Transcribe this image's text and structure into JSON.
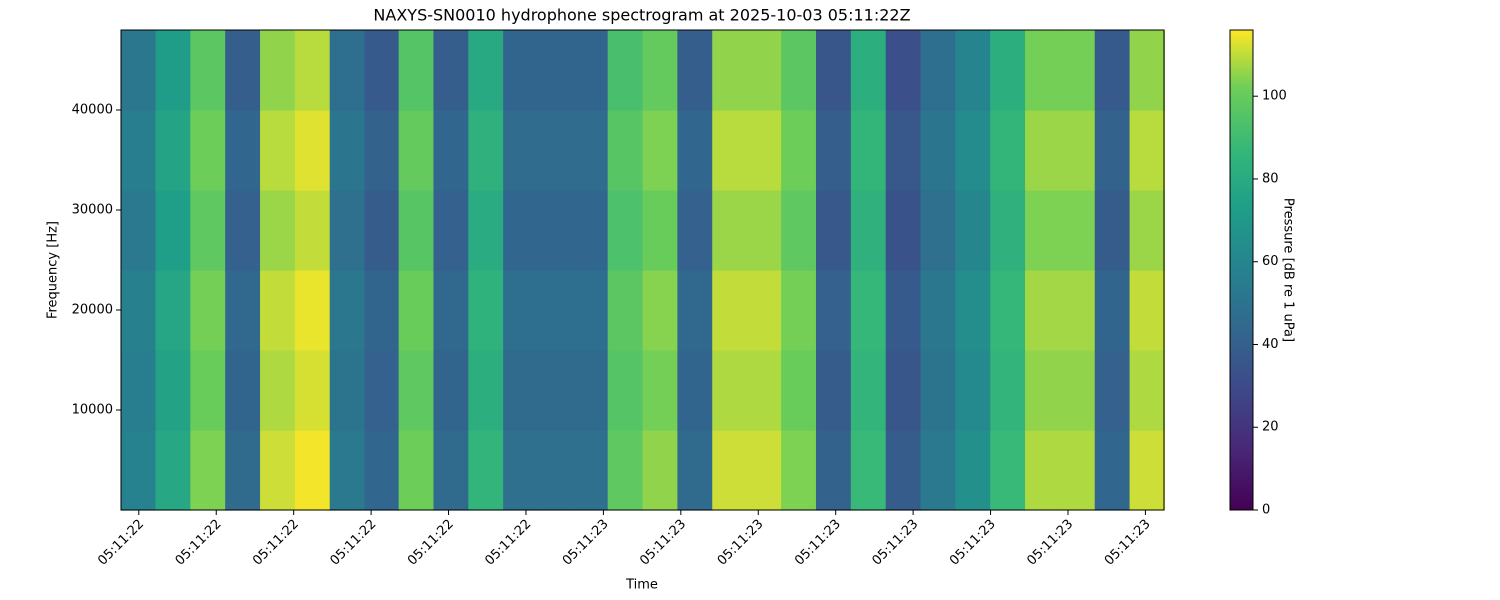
{
  "chart_data": {
    "type": "heatmap",
    "title": "NAXYS-SN0010 hydrophone spectrogram at 2025-10-03 05:11:22Z",
    "xlabel": "Time",
    "ylabel": "Frequency [Hz]",
    "colorbar_label": "Pressure [dB re 1 uPa]",
    "colormap": "viridis",
    "xlim": [
      22.377,
      23.724
    ],
    "ylim": [
      0,
      48000
    ],
    "clim": [
      0,
      116
    ],
    "xticks": [
      {
        "value": 22.4,
        "label": "05:11:22"
      },
      {
        "value": 22.5,
        "label": "05:11:22"
      },
      {
        "value": 22.6,
        "label": "05:11:22"
      },
      {
        "value": 22.7,
        "label": "05:11:22"
      },
      {
        "value": 22.8,
        "label": "05:11:22"
      },
      {
        "value": 22.9,
        "label": "05:11:22"
      },
      {
        "value": 23.0,
        "label": "05:11:23"
      },
      {
        "value": 23.1,
        "label": "05:11:23"
      },
      {
        "value": 23.2,
        "label": "05:11:23"
      },
      {
        "value": 23.3,
        "label": "05:11:23"
      },
      {
        "value": 23.4,
        "label": "05:11:23"
      },
      {
        "value": 23.5,
        "label": "05:11:23"
      },
      {
        "value": 23.6,
        "label": "05:11:23"
      },
      {
        "value": 23.7,
        "label": "05:11:23"
      }
    ],
    "yticks": [
      10000,
      20000,
      30000,
      40000
    ],
    "cticks": [
      0,
      20,
      40,
      60,
      80,
      100
    ],
    "x": [
      22.399,
      22.444,
      22.489,
      22.534,
      22.579,
      22.624,
      22.669,
      22.714,
      22.758,
      22.803,
      22.848,
      22.893,
      22.938,
      22.983,
      23.028,
      23.073,
      23.118,
      23.163,
      23.208,
      23.252,
      23.297,
      23.342,
      23.387,
      23.432,
      23.477,
      23.522,
      23.567,
      23.612,
      23.657,
      23.702
    ],
    "y": [
      4000,
      12000,
      20000,
      28000,
      36000,
      44000
    ],
    "z": [
      [
        58,
        78,
        103,
        45,
        111,
        115,
        53,
        43,
        101,
        45,
        85,
        48,
        48,
        48,
        98,
        105,
        45,
        111,
        111,
        103,
        41,
        88,
        38,
        53,
        65,
        88,
        108,
        108,
        43,
        111
      ],
      [
        55,
        75,
        100,
        42,
        108,
        112,
        50,
        40,
        98,
        42,
        82,
        45,
        45,
        45,
        95,
        102,
        42,
        108,
        108,
        100,
        38,
        85,
        35,
        50,
        62,
        85,
        105,
        105,
        40,
        108
      ],
      [
        57,
        77,
        102,
        44,
        110,
        114,
        52,
        42,
        100,
        44,
        84,
        47,
        47,
        47,
        97,
        104,
        44,
        110,
        110,
        102,
        40,
        87,
        37,
        52,
        64,
        87,
        107,
        107,
        42,
        110
      ],
      [
        53,
        73,
        98,
        40,
        106,
        110,
        48,
        38,
        96,
        40,
        80,
        43,
        43,
        43,
        93,
        100,
        40,
        106,
        106,
        98,
        36,
        83,
        33,
        48,
        60,
        83,
        103,
        103,
        38,
        106
      ],
      [
        56,
        76,
        101,
        43,
        109,
        113,
        51,
        41,
        99,
        43,
        83,
        46,
        46,
        46,
        96,
        103,
        43,
        109,
        109,
        101,
        39,
        86,
        36,
        51,
        63,
        86,
        106,
        106,
        41,
        109
      ],
      [
        52,
        72,
        97,
        39,
        105,
        109,
        47,
        37,
        95,
        39,
        79,
        42,
        42,
        42,
        92,
        99,
        39,
        105,
        105,
        97,
        35,
        82,
        32,
        47,
        59,
        82,
        102,
        102,
        37,
        105
      ]
    ]
  }
}
